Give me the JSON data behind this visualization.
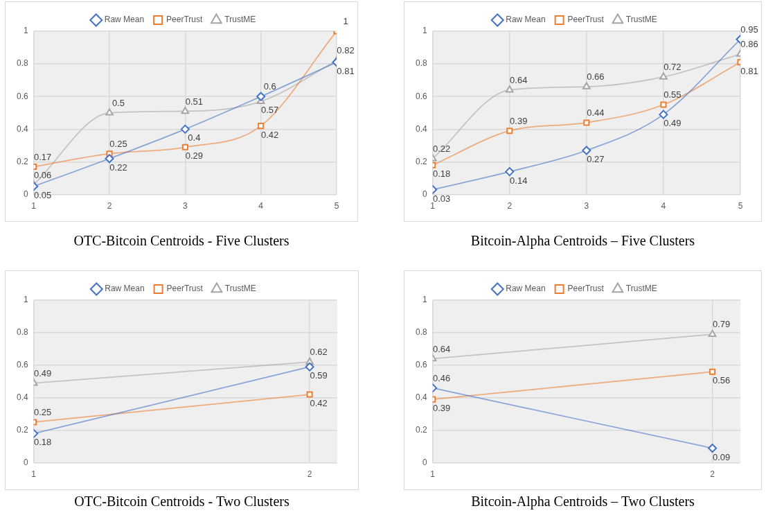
{
  "chart_data": [
    {
      "type": "line",
      "title": "OTC-Bitcoin Centroids - Five Clusters",
      "x": [
        1,
        2,
        3,
        4,
        5
      ],
      "series": [
        {
          "name": "Raw Mean",
          "color": "#4472c4",
          "marker": "diamond",
          "values": [
            0.05,
            0.22,
            0.4,
            0.6,
            0.81
          ]
        },
        {
          "name": "PeerTrust",
          "color": "#ed7d31",
          "marker": "square",
          "values": [
            0.17,
            0.25,
            0.29,
            0.42,
            1
          ]
        },
        {
          "name": "TrustME",
          "color": "#a5a5a5",
          "marker": "triangle",
          "values": [
            0.06,
            0.5,
            0.51,
            0.57,
            0.82
          ]
        }
      ],
      "xlim": [
        1,
        5
      ],
      "xticks": [
        1,
        2,
        3,
        4,
        5
      ],
      "ylim": [
        0,
        1
      ],
      "yticks": [
        0,
        0.2,
        0.4,
        0.6,
        0.8,
        1
      ],
      "grid": true,
      "legend": "top",
      "data_labels": true,
      "line_style": "solid"
    },
    {
      "type": "line",
      "title": "Bitcoin-Alpha Centroids – Five Clusters",
      "x": [
        1,
        2,
        3,
        4,
        5
      ],
      "series": [
        {
          "name": "Raw Mean",
          "color": "#4472c4",
          "marker": "diamond",
          "values": [
            0.03,
            0.14,
            0.27,
            0.49,
            0.95
          ]
        },
        {
          "name": "PeerTrust",
          "color": "#ed7d31",
          "marker": "square",
          "values": [
            0.18,
            0.39,
            0.44,
            0.55,
            0.81
          ]
        },
        {
          "name": "TrustME",
          "color": "#a5a5a5",
          "marker": "triangle",
          "values": [
            0.22,
            0.64,
            0.66,
            0.72,
            0.86
          ]
        }
      ],
      "xlim": [
        1,
        5
      ],
      "xticks": [
        1,
        2,
        3,
        4,
        5
      ],
      "ylim": [
        0,
        1
      ],
      "yticks": [
        0,
        0.2,
        0.4,
        0.6,
        0.8,
        1
      ],
      "grid": true,
      "legend": "top",
      "data_labels": true,
      "line_style": "solid"
    },
    {
      "type": "line",
      "title": "OTC-Bitcoin Centroids - Two Clusters",
      "x": [
        1,
        2
      ],
      "series": [
        {
          "name": "Raw Mean",
          "color": "#4472c4",
          "marker": "diamond",
          "values": [
            0.18,
            0.59
          ]
        },
        {
          "name": "PeerTrust",
          "color": "#ed7d31",
          "marker": "square",
          "values": [
            0.25,
            0.42
          ]
        },
        {
          "name": "TrustME",
          "color": "#a5a5a5",
          "marker": "triangle",
          "values": [
            0.49,
            0.62
          ]
        }
      ],
      "xlim": [
        1,
        2.1
      ],
      "xticks": [
        1,
        2
      ],
      "ylim": [
        0,
        1
      ],
      "yticks": [
        0,
        0.2,
        0.4,
        0.6,
        0.8,
        1
      ],
      "grid": true,
      "legend": "top",
      "data_labels": true,
      "line_style": "solid"
    },
    {
      "type": "line",
      "title": "Bitcoin-Alpha Centroids – Two Clusters",
      "x": [
        1,
        2
      ],
      "series": [
        {
          "name": "Raw Mean",
          "color": "#4472c4",
          "marker": "diamond",
          "values": [
            0.46,
            0.09
          ]
        },
        {
          "name": "PeerTrust",
          "color": "#ed7d31",
          "marker": "square",
          "values": [
            0.39,
            0.56
          ]
        },
        {
          "name": "TrustME",
          "color": "#a5a5a5",
          "marker": "triangle",
          "values": [
            0.64,
            0.79
          ]
        }
      ],
      "xlim": [
        1,
        2.1
      ],
      "xticks": [
        1,
        2
      ],
      "ylim": [
        0,
        1
      ],
      "yticks": [
        0,
        0.2,
        0.4,
        0.6,
        0.8,
        1
      ],
      "grid": true,
      "legend": "top",
      "data_labels": true,
      "line_style": "solid"
    }
  ]
}
